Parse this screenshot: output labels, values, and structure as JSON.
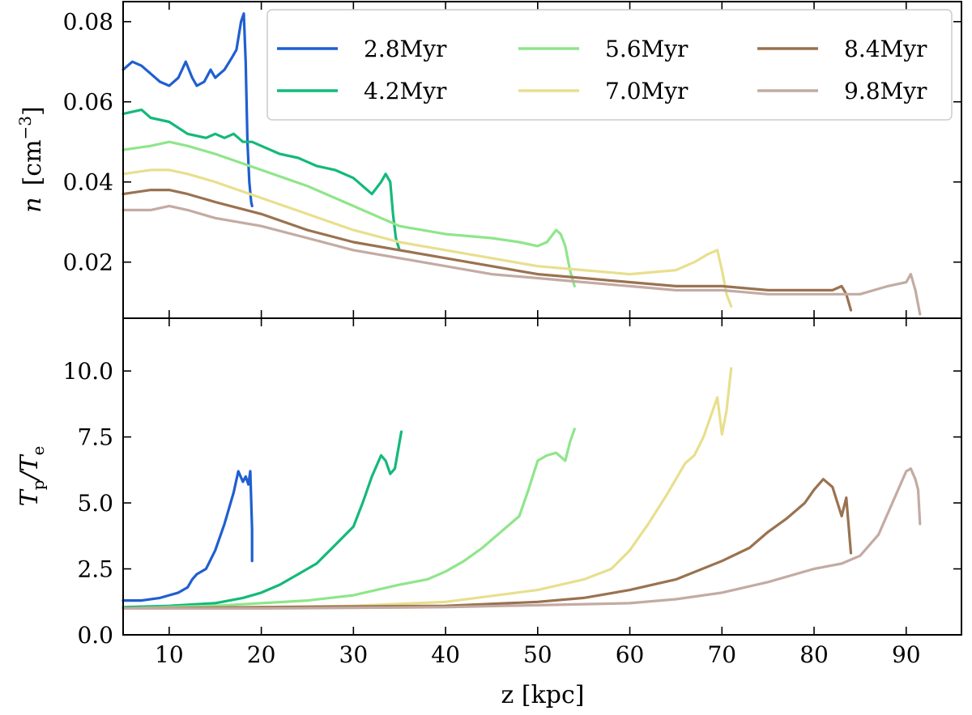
{
  "chart_data": [
    {
      "type": "line",
      "panel": "top",
      "ylabel_var": "n",
      "ylabel_unit": "[cm",
      "ylabel_exp": "−3",
      "ylabel_close": "]",
      "xlim": [
        5,
        96
      ],
      "ylim": [
        0.006,
        0.085
      ],
      "yticks": [
        0.02,
        0.04,
        0.06,
        0.08
      ],
      "ytick_labels": [
        "0.02",
        "0.04",
        "0.06",
        "0.08"
      ],
      "grid": false,
      "legend": {
        "placement": "top-right",
        "ncol": 3,
        "entries": [
          "2.8Myr",
          "4.2Myr",
          "5.6Myr",
          "7.0Myr",
          "8.4Myr",
          "9.8Myr"
        ]
      },
      "series": [
        {
          "name": "2.8Myr",
          "color": "#1f5fd0",
          "x": [
            5,
            6,
            7,
            8,
            9,
            10,
            11,
            11.8,
            12.5,
            13,
            13.8,
            14.5,
            15,
            16,
            16.8,
            17.3,
            17.8,
            18.1,
            18.3,
            18.5,
            18.7,
            18.9,
            19
          ],
          "y": [
            0.068,
            0.07,
            0.069,
            0.067,
            0.065,
            0.064,
            0.066,
            0.07,
            0.066,
            0.064,
            0.065,
            0.068,
            0.066,
            0.068,
            0.071,
            0.073,
            0.08,
            0.082,
            0.07,
            0.05,
            0.04,
            0.035,
            0.034
          ]
        },
        {
          "name": "4.2Myr",
          "color": "#14b97a",
          "x": [
            5,
            7,
            8,
            10,
            12,
            14,
            15,
            16,
            17,
            18,
            19,
            20,
            22,
            24,
            26,
            28,
            30,
            31,
            32,
            33,
            33.5,
            34,
            34.3,
            34.6,
            35
          ],
          "y": [
            0.057,
            0.058,
            0.056,
            0.055,
            0.052,
            0.051,
            0.052,
            0.051,
            0.052,
            0.05,
            0.05,
            0.049,
            0.047,
            0.046,
            0.044,
            0.043,
            0.041,
            0.039,
            0.037,
            0.04,
            0.042,
            0.04,
            0.032,
            0.026,
            0.023
          ]
        },
        {
          "name": "5.6Myr",
          "color": "#8ee68a",
          "x": [
            5,
            8,
            10,
            12,
            15,
            20,
            25,
            30,
            35,
            40,
            45,
            48,
            50,
            51,
            52,
            52.5,
            53,
            53.5,
            54
          ],
          "y": [
            0.048,
            0.049,
            0.05,
            0.049,
            0.047,
            0.043,
            0.039,
            0.034,
            0.029,
            0.027,
            0.026,
            0.025,
            0.024,
            0.025,
            0.028,
            0.027,
            0.024,
            0.018,
            0.014
          ]
        },
        {
          "name": "7.0Myr",
          "color": "#e8df8e",
          "x": [
            5,
            8,
            10,
            12,
            15,
            20,
            25,
            30,
            35,
            40,
            45,
            50,
            55,
            60,
            65,
            67,
            68.5,
            69.5,
            70,
            70.5,
            71
          ],
          "y": [
            0.042,
            0.043,
            0.043,
            0.042,
            0.04,
            0.036,
            0.032,
            0.028,
            0.025,
            0.023,
            0.021,
            0.019,
            0.018,
            0.017,
            0.018,
            0.02,
            0.022,
            0.023,
            0.018,
            0.012,
            0.009
          ]
        },
        {
          "name": "8.4Myr",
          "color": "#9a7250",
          "x": [
            5,
            8,
            10,
            12,
            15,
            20,
            25,
            30,
            35,
            40,
            45,
            50,
            55,
            60,
            65,
            70,
            75,
            80,
            82,
            83,
            83.5,
            84
          ],
          "y": [
            0.037,
            0.038,
            0.038,
            0.037,
            0.035,
            0.032,
            0.028,
            0.025,
            0.023,
            0.021,
            0.019,
            0.017,
            0.016,
            0.015,
            0.014,
            0.014,
            0.013,
            0.013,
            0.013,
            0.014,
            0.012,
            0.008
          ]
        },
        {
          "name": "9.8Myr",
          "color": "#c3aba3",
          "x": [
            5,
            8,
            10,
            12,
            15,
            20,
            25,
            30,
            35,
            40,
            45,
            50,
            55,
            60,
            65,
            70,
            75,
            80,
            85,
            88,
            90,
            90.5,
            91,
            91.5
          ],
          "y": [
            0.033,
            0.033,
            0.034,
            0.033,
            0.031,
            0.029,
            0.026,
            0.023,
            0.021,
            0.019,
            0.017,
            0.016,
            0.015,
            0.014,
            0.013,
            0.013,
            0.012,
            0.012,
            0.012,
            0.014,
            0.015,
            0.017,
            0.013,
            0.007
          ]
        }
      ]
    },
    {
      "type": "line",
      "panel": "bottom",
      "xlabel": "z [kpc]",
      "ylabel_var": "T",
      "ylabel_sub1": "p",
      "ylabel_sep": "/T",
      "ylabel_sub2": "e",
      "xlim": [
        5,
        96
      ],
      "ylim": [
        0,
        12
      ],
      "xticks": [
        10,
        20,
        30,
        40,
        50,
        60,
        70,
        80,
        90
      ],
      "xtick_labels": [
        "10",
        "20",
        "30",
        "40",
        "50",
        "60",
        "70",
        "80",
        "90"
      ],
      "yticks": [
        0,
        2.5,
        5,
        7.5,
        10
      ],
      "ytick_labels": [
        "0.0",
        "2.5",
        "5.0",
        "7.5",
        "10.0"
      ],
      "grid": false,
      "series": [
        {
          "name": "2.8Myr",
          "color": "#1f5fd0",
          "x": [
            5,
            7,
            9,
            10,
            11,
            12,
            12.5,
            13,
            14,
            15,
            16,
            17,
            17.5,
            18,
            18.3,
            18.6,
            18.8,
            19,
            19
          ],
          "y": [
            1.3,
            1.3,
            1.4,
            1.5,
            1.6,
            1.8,
            2.1,
            2.3,
            2.5,
            3.2,
            4.2,
            5.4,
            6.2,
            5.8,
            6.0,
            5.7,
            6.2,
            4.0,
            2.8
          ]
        },
        {
          "name": "4.2Myr",
          "color": "#14b97a",
          "x": [
            5,
            10,
            15,
            18,
            20,
            22,
            24,
            26,
            28,
            30,
            31,
            32,
            33,
            33.5,
            34,
            34.5,
            35,
            35.2
          ],
          "y": [
            1.05,
            1.1,
            1.2,
            1.4,
            1.6,
            1.9,
            2.3,
            2.7,
            3.4,
            4.1,
            5.0,
            6.0,
            6.8,
            6.6,
            6.1,
            6.3,
            7.3,
            7.7
          ]
        },
        {
          "name": "5.6Myr",
          "color": "#8ee68a",
          "x": [
            5,
            15,
            25,
            30,
            35,
            38,
            40,
            42,
            44,
            46,
            48,
            49,
            50,
            51,
            52,
            53,
            53.5,
            54
          ],
          "y": [
            1.0,
            1.1,
            1.3,
            1.5,
            1.9,
            2.1,
            2.4,
            2.8,
            3.3,
            3.9,
            4.5,
            5.5,
            6.6,
            6.8,
            6.9,
            6.6,
            7.3,
            7.8
          ]
        },
        {
          "name": "7.0Myr",
          "color": "#e8df8e",
          "x": [
            5,
            20,
            30,
            40,
            50,
            55,
            58,
            60,
            62,
            64,
            66,
            67,
            68,
            69,
            69.5,
            70,
            70.5,
            71
          ],
          "y": [
            1.0,
            1.05,
            1.1,
            1.25,
            1.7,
            2.1,
            2.5,
            3.2,
            4.2,
            5.3,
            6.5,
            6.8,
            7.5,
            8.5,
            9.0,
            7.6,
            8.5,
            10.1
          ]
        },
        {
          "name": "8.4Myr",
          "color": "#9a7250",
          "x": [
            5,
            20,
            40,
            50,
            55,
            60,
            65,
            70,
            73,
            75,
            77,
            79,
            80,
            81,
            82,
            83,
            83.5,
            84
          ],
          "y": [
            1.0,
            1.05,
            1.1,
            1.25,
            1.4,
            1.7,
            2.1,
            2.8,
            3.3,
            3.9,
            4.4,
            5.0,
            5.5,
            5.9,
            5.6,
            4.5,
            5.2,
            3.1
          ]
        },
        {
          "name": "9.8Myr",
          "color": "#c3aba3",
          "x": [
            5,
            20,
            40,
            60,
            65,
            70,
            75,
            80,
            83,
            85,
            87,
            88,
            89,
            90,
            90.5,
            91,
            91.3,
            91.5
          ],
          "y": [
            1.0,
            1.0,
            1.05,
            1.2,
            1.35,
            1.6,
            2.0,
            2.5,
            2.7,
            3.0,
            3.8,
            4.6,
            5.4,
            6.2,
            6.3,
            5.9,
            5.5,
            4.2
          ]
        }
      ]
    }
  ]
}
